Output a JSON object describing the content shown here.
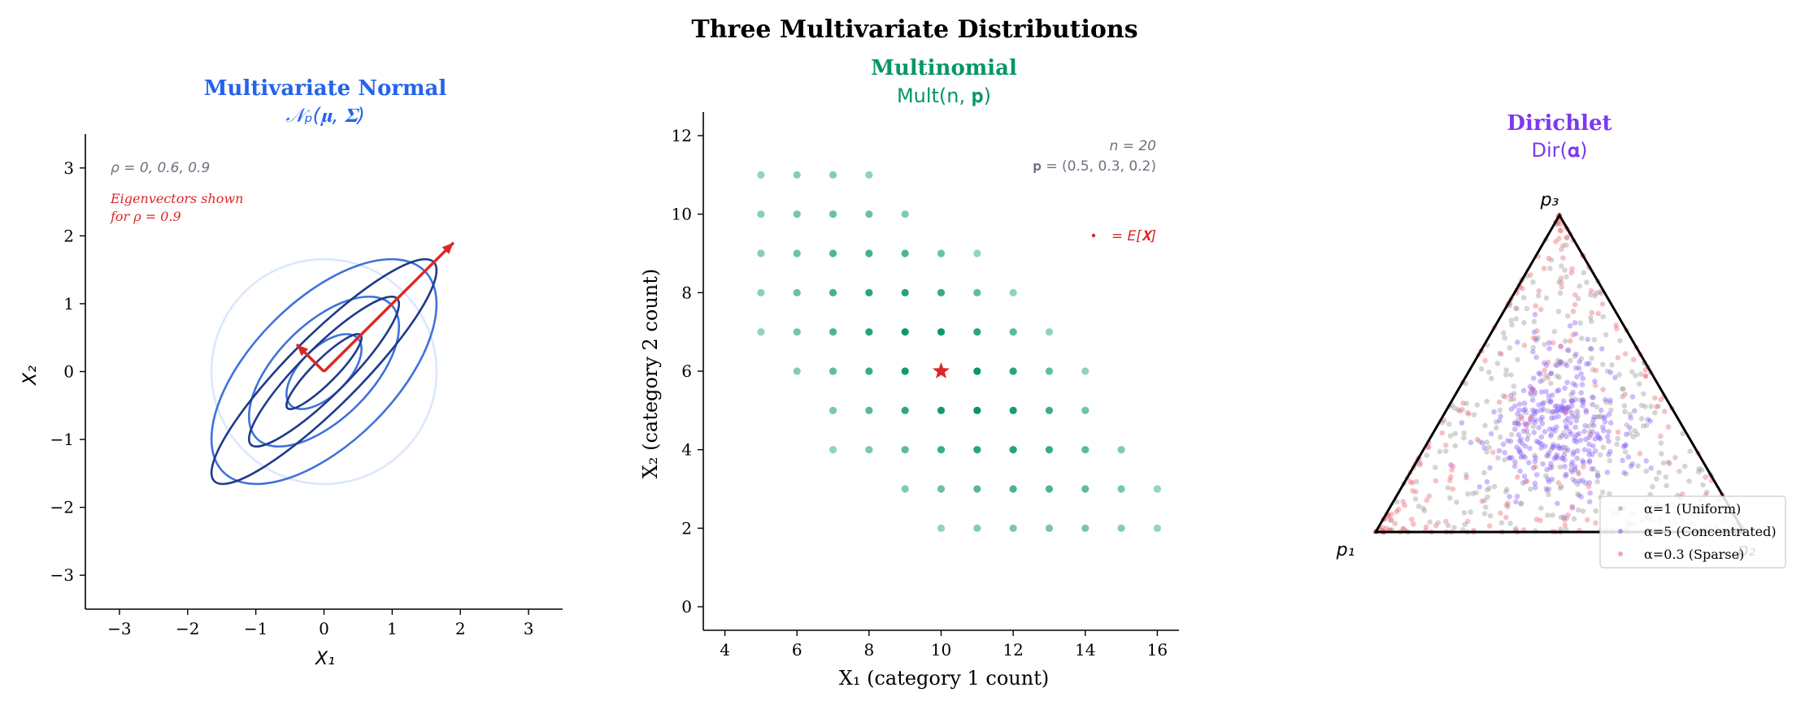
{
  "figure": {
    "title": "Three Multivariate Distributions"
  },
  "chart_data": [
    {
      "type": "line",
      "title": "Multivariate Normal",
      "subtitle": "𝒩ₚ(𝛍, 𝚺)",
      "xlabel": "X₁",
      "ylabel": "X₂",
      "xlim": [
        -3.5,
        3.5
      ],
      "ylim": [
        -3.5,
        3.5
      ],
      "xticks": [
        -3,
        -2,
        -1,
        0,
        1,
        2,
        3
      ],
      "yticks": [
        -3,
        -2,
        -1,
        0,
        1,
        2,
        3
      ],
      "tick_labels_x": [
        "−3",
        "−2",
        "−1",
        "0",
        "1",
        "2",
        "3"
      ],
      "tick_labels_y": [
        "−3",
        "−2",
        "−1",
        "0",
        "1",
        "2",
        "3"
      ],
      "rho_note": "ρ = 0, 0.6, 0.9",
      "eigen_note_line1": "Eigenvectors shown",
      "eigen_note_line2": "for ρ = 0.9",
      "series": [
        {
          "rho": 0.0,
          "color": "#dbe7fb",
          "levels": [
            1.65
          ]
        },
        {
          "rho": 0.6,
          "color": "#3f72dc",
          "levels": [
            0.55,
            1.1,
            1.65
          ]
        },
        {
          "rho": 0.9,
          "color": "#1e3a8a",
          "levels": [
            0.55,
            1.1,
            1.65
          ]
        }
      ],
      "eigenvectors": [
        {
          "dx": 1.9,
          "dy": 1.9
        },
        {
          "dx": -0.4,
          "dy": 0.4
        }
      ],
      "grid": false
    },
    {
      "type": "scatter",
      "title": "Multinomial",
      "subtitle": "Mult(n, 𝐩)",
      "xlabel": "X₁ (category 1 count)",
      "ylabel": "X₂ (category 2 count)",
      "xlim": [
        3.4,
        16.6
      ],
      "ylim": [
        -0.6,
        12.6
      ],
      "xticks": [
        4,
        6,
        8,
        10,
        12,
        14,
        16
      ],
      "yticks": [
        0,
        2,
        4,
        6,
        8,
        10,
        12
      ],
      "n_label": "n = 20",
      "p_label": "𝐩 = (0.5, 0.3, 0.2)",
      "mean_label": "= E[𝐗]",
      "mean": [
        10,
        6
      ],
      "n": 20,
      "p": [
        0.5,
        0.3,
        0.2
      ],
      "grid": false
    },
    {
      "type": "scatter",
      "title": "Dirichlet",
      "subtitle": "Dir(𝛂)",
      "vertex_labels": [
        "p₁",
        "p₂",
        "p₃"
      ],
      "series": [
        {
          "name": "α=1 (Uniform)",
          "alpha": 1,
          "color": "#9a9a9a",
          "count": 320
        },
        {
          "name": "α=5 (Concentrated)",
          "alpha": 5,
          "color": "#8b5cf6",
          "count": 320
        },
        {
          "name": "α=0.3 (Sparse)",
          "alpha": 0.3,
          "color": "#ef6b75",
          "count": 260
        }
      ],
      "legend_position": "lower right",
      "grid": false
    }
  ],
  "colors": {
    "normal_title": "#2563eb",
    "multinomial_title": "#059669",
    "multinomial_points": "#059669",
    "dirichlet_title": "#7c3aed",
    "annotation_gray": "#6b7280",
    "annotation_red": "#dc2626",
    "arrow_red": "#dc2626"
  }
}
